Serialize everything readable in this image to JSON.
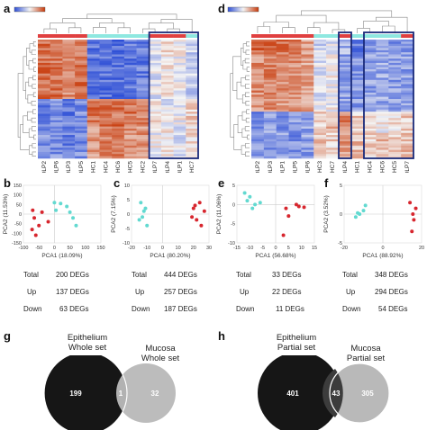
{
  "panels": {
    "a": "a",
    "b": "b",
    "c": "c",
    "d": "d",
    "e": "e",
    "f": "f",
    "g": "g",
    "h": "h"
  },
  "heatmap_a": {
    "columns": [
      "OLP2",
      "OLP6",
      "OLP3",
      "OLP5",
      "HC1",
      "HC4",
      "HC6",
      "HC5",
      "HC2",
      "OLP7",
      "OLP4",
      "OLP1",
      "HC7"
    ],
    "colors": {
      "low": "#2e4fd6",
      "mid": "#f2f2f2",
      "high": "#c83a0a",
      "box": "#1a2a7a",
      "group_olp": "#e04040",
      "group_hc": "#8ee8e0"
    }
  },
  "heatmap_d": {
    "columns": [
      "OLP2",
      "OLP3",
      "OLP1",
      "OLP5",
      "OLP6",
      "HC3",
      "HC7",
      "OLP4",
      "HC1",
      "HC4",
      "HC6",
      "HC5",
      "OLP7"
    ]
  },
  "pca_b": {
    "xlabel": "PCA1 (18.09%)",
    "ylabel": "PCA2 (11.53%)",
    "xticks": [
      "-100",
      "-50",
      "0",
      "50",
      "100",
      "150"
    ],
    "yticks": [
      "150",
      "100",
      "50",
      "0",
      "-50",
      "-100",
      "-150"
    ]
  },
  "pca_c": {
    "xlabel": "PCA1 (80.20%)",
    "ylabel": "PCA2 (7.15%)",
    "xticks": [
      "-20",
      "-10",
      "0",
      "10",
      "20",
      "30"
    ],
    "yticks": [
      "10",
      "5",
      "0",
      "-5",
      "-10"
    ]
  },
  "pca_e": {
    "xlabel": "PCA1 (56.68%)",
    "ylabel": "PCA2 (11.06%)",
    "xticks": [
      "-15",
      "-10",
      "-5",
      "0",
      "5",
      "10",
      "15"
    ],
    "yticks": [
      "5",
      "0",
      "-5",
      "-10"
    ]
  },
  "pca_f": {
    "xlabel": "PCA1 (88.92%)",
    "ylabel": "PCA2 (3.52%)",
    "xticks": [
      "-20",
      "0",
      "20"
    ],
    "yticks": [
      "5",
      "0",
      "-5"
    ]
  },
  "stats": {
    "b": {
      "total_label": "Total",
      "total": "200 DEGs",
      "up_label": "Up",
      "up": "137 DEGs",
      "down_label": "Down",
      "down": "63 DEGs"
    },
    "c": {
      "total_label": "Total",
      "total": "444 DEGs",
      "up_label": "Up",
      "up": "257 DEGs",
      "down_label": "Down",
      "down": "187 DEGs"
    },
    "e": {
      "total_label": "Total",
      "total": "33 DEGs",
      "up_label": "Up",
      "up": "22 DEGs",
      "down_label": "Down",
      "down": "11 DEGs"
    },
    "f": {
      "total_label": "Total",
      "total": "348 DEGs",
      "up_label": "Up",
      "up": "294 DEGs",
      "down_label": "Down",
      "down": "54 DEGs"
    }
  },
  "venn_g": {
    "left_title1": "Epithelium",
    "left_title2": "Whole set",
    "right_title1": "Mucosa",
    "right_title2": "Whole set",
    "left": "199",
    "overlap": "1",
    "right": "32"
  },
  "venn_h": {
    "left_title1": "Epithelium",
    "left_title2": "Partial set",
    "right_title1": "Mucosa",
    "right_title2": "Partial set",
    "left": "401",
    "overlap": "43",
    "right": "305"
  }
}
